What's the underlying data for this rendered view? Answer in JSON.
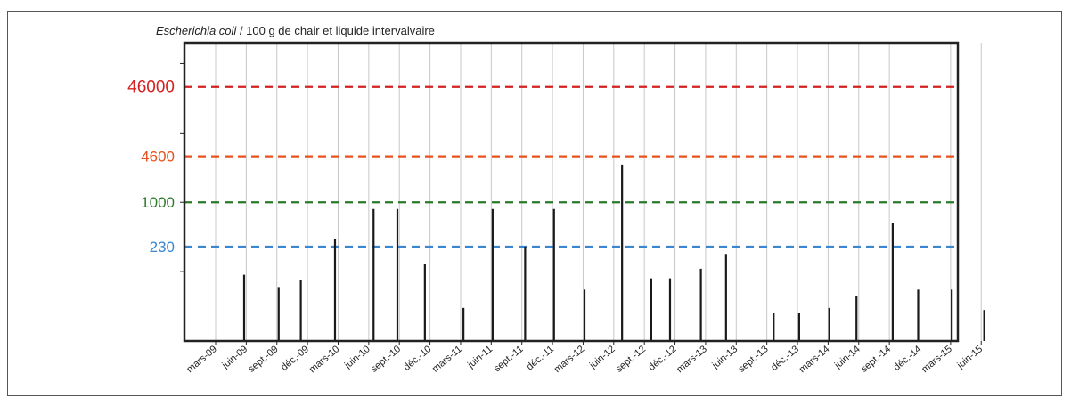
{
  "chart_data": {
    "type": "bar",
    "title_italic": "Escherichia coli",
    "title_rest": " / 100 g de chair et liquide intervalvaire",
    "x_tick_labels": [
      "mars-09",
      "juin-09",
      "sept.-09",
      "déc.-09",
      "mars-10",
      "juin-10",
      "sept.-10",
      "déc.-10",
      "mars-11",
      "juin-11",
      "sept.-11",
      "déc.-11",
      "mars-12",
      "juin-12",
      "sept.-12",
      "déc.-12",
      "mars-13",
      "juin-13",
      "sept.-13",
      "déc.-13",
      "mars-14",
      "juin-14",
      "sept.-14",
      "déc.-14",
      "mars-15",
      "juin-15"
    ],
    "x_range": [
      "2009-03",
      "2015-06"
    ],
    "y_scale": "log",
    "reference_lines": [
      {
        "label": "46000",
        "value": 46000,
        "color": "#d42020"
      },
      {
        "label": "4600",
        "value": 4600,
        "color": "#e8501c"
      },
      {
        "label": "1000",
        "value": 1000,
        "color": "#2a7a2a"
      },
      {
        "label": "230",
        "value": 230,
        "color": "#3a86d0"
      }
    ],
    "points": [
      {
        "x": "2009-05-25",
        "y": 90
      },
      {
        "x": "2009-09-05",
        "y": 60
      },
      {
        "x": "2009-11-10",
        "y": 75
      },
      {
        "x": "2010-02-20",
        "y": 300
      },
      {
        "x": "2010-06-15",
        "y": 800
      },
      {
        "x": "2010-08-25",
        "y": 800
      },
      {
        "x": "2010-11-15",
        "y": 130
      },
      {
        "x": "2011-03-10",
        "y": 30
      },
      {
        "x": "2011-06-05",
        "y": 800
      },
      {
        "x": "2011-09-10",
        "y": 230
      },
      {
        "x": "2011-12-05",
        "y": 800
      },
      {
        "x": "2012-03-05",
        "y": 55
      },
      {
        "x": "2012-06-25",
        "y": 3500
      },
      {
        "x": "2012-09-20",
        "y": 80
      },
      {
        "x": "2012-11-15",
        "y": 80
      },
      {
        "x": "2013-02-15",
        "y": 110
      },
      {
        "x": "2013-05-01",
        "y": 180
      },
      {
        "x": "2013-09-20",
        "y": 25
      },
      {
        "x": "2013-12-05",
        "y": 25
      },
      {
        "x": "2014-03-05",
        "y": 30
      },
      {
        "x": "2014-05-25",
        "y": 45
      },
      {
        "x": "2014-09-10",
        "y": 500
      },
      {
        "x": "2014-11-25",
        "y": 55
      },
      {
        "x": "2015-03-05",
        "y": 55
      },
      {
        "x": "2015-06-10",
        "y": 28
      }
    ],
    "colors": {
      "bar": "#1a1a1a",
      "grid": "#c8c8c8",
      "axis": "#222222"
    }
  }
}
